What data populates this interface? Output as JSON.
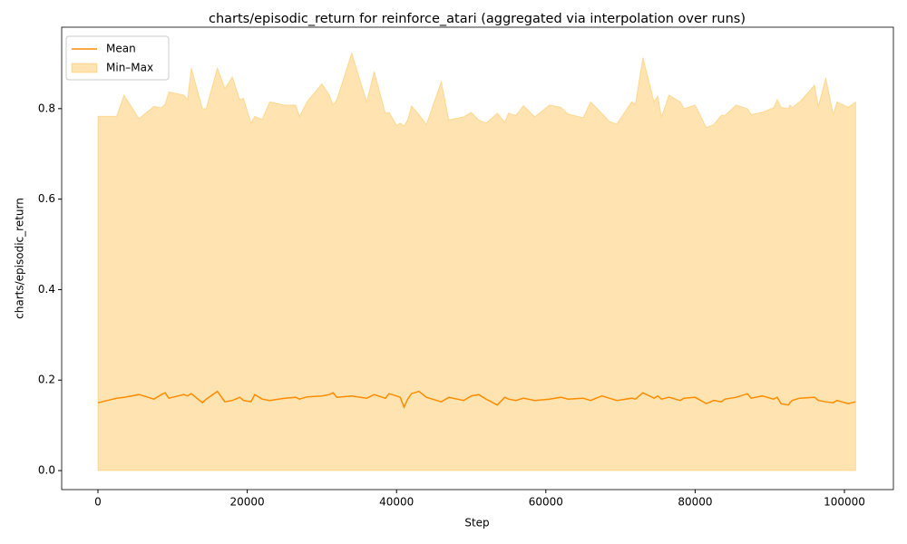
{
  "chart_data": {
    "type": "line",
    "title": "charts/episodic_return for reinforce_atari (aggregated via interpolation over runs)",
    "x_label": "Step",
    "y_label": "charts/episodic_return",
    "x": [
      0,
      2500,
      3500,
      5500,
      7500,
      8500,
      9000,
      9500,
      11500,
      12000,
      12500,
      14000,
      14500,
      16000,
      17000,
      18000,
      19000,
      19500,
      20500,
      21000,
      22000,
      23000,
      25000,
      26500,
      27000,
      28000,
      30000,
      31000,
      31500,
      32000,
      34000,
      36000,
      37000,
      38500,
      39000,
      40000,
      40500,
      41000,
      41500,
      42000,
      43000,
      44000,
      46000,
      47000,
      49000,
      50000,
      51000,
      52000,
      53500,
      54500,
      55000,
      56000,
      57000,
      58500,
      60500,
      62000,
      63000,
      65000,
      66000,
      67500,
      68500,
      69500,
      71500,
      72000,
      73000,
      74500,
      75000,
      75500,
      76500,
      78000,
      78500,
      80000,
      81500,
      82500,
      83500,
      84000,
      85500,
      87000,
      87500,
      89000,
      90500,
      91000,
      91500,
      92500,
      92700,
      93000,
      94000,
      96000,
      96500,
      97500,
      98500,
      99000,
      100500,
      101500
    ],
    "series": [
      {
        "name": "Mean",
        "color": "#ff8c00",
        "values": [
          0.15,
          0.16,
          0.162,
          0.168,
          0.158,
          0.168,
          0.172,
          0.16,
          0.168,
          0.165,
          0.17,
          0.15,
          0.158,
          0.175,
          0.152,
          0.155,
          0.162,
          0.155,
          0.152,
          0.168,
          0.158,
          0.155,
          0.16,
          0.162,
          0.158,
          0.163,
          0.165,
          0.168,
          0.172,
          0.162,
          0.165,
          0.16,
          0.168,
          0.16,
          0.17,
          0.165,
          0.162,
          0.14,
          0.158,
          0.17,
          0.175,
          0.162,
          0.152,
          0.162,
          0.155,
          0.165,
          0.168,
          0.158,
          0.145,
          0.162,
          0.158,
          0.155,
          0.16,
          0.155,
          0.158,
          0.162,
          0.158,
          0.16,
          0.155,
          0.165,
          0.16,
          0.155,
          0.16,
          0.158,
          0.172,
          0.16,
          0.165,
          0.158,
          0.162,
          0.155,
          0.16,
          0.162,
          0.148,
          0.155,
          0.152,
          0.158,
          0.162,
          0.17,
          0.16,
          0.165,
          0.158,
          0.162,
          0.148,
          0.145,
          0.15,
          0.155,
          0.16,
          0.162,
          0.155,
          0.152,
          0.15,
          0.155,
          0.148,
          0.152
        ]
      },
      {
        "name": "Min–Max",
        "color": "#ffa500",
        "opacity": 0.3,
        "lower": [
          0,
          0,
          0,
          0,
          0,
          0,
          0,
          0,
          0,
          0,
          0,
          0,
          0,
          0,
          0,
          0,
          0,
          0,
          0,
          0,
          0,
          0,
          0,
          0,
          0,
          0,
          0,
          0,
          0,
          0,
          0,
          0,
          0,
          0,
          0,
          0,
          0,
          0,
          0,
          0,
          0,
          0,
          0,
          0,
          0,
          0,
          0,
          0,
          0,
          0,
          0,
          0,
          0,
          0,
          0,
          0,
          0,
          0,
          0,
          0,
          0,
          0,
          0,
          0,
          0,
          0,
          0,
          0,
          0,
          0,
          0,
          0,
          0,
          0,
          0,
          0,
          0,
          0,
          0,
          0,
          0,
          0,
          0,
          0,
          0,
          0,
          0,
          0,
          0,
          0,
          0,
          0,
          0,
          0
        ],
        "upper": [
          0.783,
          0.783,
          0.83,
          0.778,
          0.805,
          0.802,
          0.81,
          0.837,
          0.83,
          0.82,
          0.89,
          0.8,
          0.8,
          0.89,
          0.845,
          0.87,
          0.82,
          0.823,
          0.768,
          0.783,
          0.776,
          0.815,
          0.808,
          0.808,
          0.783,
          0.815,
          0.855,
          0.83,
          0.808,
          0.82,
          0.923,
          0.815,
          0.882,
          0.79,
          0.792,
          0.763,
          0.768,
          0.762,
          0.775,
          0.806,
          0.787,
          0.765,
          0.86,
          0.775,
          0.782,
          0.792,
          0.775,
          0.768,
          0.79,
          0.77,
          0.79,
          0.785,
          0.807,
          0.782,
          0.808,
          0.803,
          0.788,
          0.78,
          0.815,
          0.79,
          0.772,
          0.766,
          0.815,
          0.81,
          0.913,
          0.815,
          0.828,
          0.782,
          0.83,
          0.815,
          0.8,
          0.808,
          0.758,
          0.765,
          0.785,
          0.785,
          0.808,
          0.8,
          0.787,
          0.792,
          0.802,
          0.82,
          0.803,
          0.8,
          0.808,
          0.802,
          0.815,
          0.852,
          0.805,
          0.868,
          0.787,
          0.815,
          0.803,
          0.815
        ]
      }
    ],
    "xlim": [
      -4860,
      106560
    ],
    "ylim": [
      -0.042,
      0.98
    ],
    "xticks": [
      0,
      20000,
      40000,
      60000,
      80000,
      100000
    ],
    "yticks": [
      {
        "value": 0,
        "label": "0.0"
      },
      0.2,
      0.4,
      0.6,
      0.8
    ],
    "legend": "upper left",
    "grid": false
  }
}
